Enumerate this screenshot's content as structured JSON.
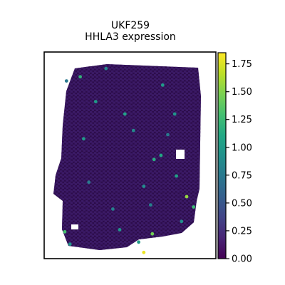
{
  "chart_data": {
    "type": "scatter",
    "title": "UKF259",
    "subtitle": "HHLA3 expression",
    "xlabel": "",
    "ylabel": "",
    "xlim": [
      0,
      100
    ],
    "ylim": [
      0,
      100
    ],
    "axes_visible": false,
    "grid": false,
    "colormap": "viridis",
    "colorbar": {
      "vmin": 0.0,
      "vmax": 1.85,
      "ticks": [
        0.0,
        0.25,
        0.5,
        0.75,
        1.0,
        1.25,
        1.5,
        1.75
      ],
      "tick_labels": [
        "0.00",
        "0.25",
        "0.50",
        "0.75",
        "1.00",
        "1.25",
        "1.50",
        "1.75"
      ]
    },
    "points": [
      {
        "x": 58,
        "y": 3,
        "value": 1.8
      },
      {
        "x": 83,
        "y": 30,
        "value": 1.55
      },
      {
        "x": 63,
        "y": 12,
        "value": 1.45
      },
      {
        "x": 12,
        "y": 13,
        "value": 1.3
      },
      {
        "x": 87,
        "y": 25,
        "value": 1.25
      },
      {
        "x": 55,
        "y": 8,
        "value": 1.0
      },
      {
        "x": 21,
        "y": 88,
        "value": 1.2
      },
      {
        "x": 64,
        "y": 48,
        "value": 1.15
      },
      {
        "x": 68,
        "y": 50,
        "value": 1.1
      },
      {
        "x": 77,
        "y": 40,
        "value": 1.05
      },
      {
        "x": 47,
        "y": 70,
        "value": 1.05
      },
      {
        "x": 23,
        "y": 58,
        "value": 1.0
      },
      {
        "x": 30,
        "y": 76,
        "value": 1.0
      },
      {
        "x": 69,
        "y": 84,
        "value": 1.0
      },
      {
        "x": 44,
        "y": 14,
        "value": 0.95
      },
      {
        "x": 15,
        "y": 7,
        "value": 0.95
      },
      {
        "x": 76,
        "y": 70,
        "value": 0.95
      },
      {
        "x": 58,
        "y": 35,
        "value": 0.9
      },
      {
        "x": 80,
        "y": 18,
        "value": 0.9
      },
      {
        "x": 36,
        "y": 92,
        "value": 0.85
      },
      {
        "x": 52,
        "y": 62,
        "value": 0.85
      },
      {
        "x": 40,
        "y": 24,
        "value": 0.8
      },
      {
        "x": 62,
        "y": 26,
        "value": 0.8
      },
      {
        "x": 13,
        "y": 86,
        "value": 0.75
      },
      {
        "x": 72,
        "y": 60,
        "value": 0.75
      },
      {
        "x": 26,
        "y": 37,
        "value": 0.75
      }
    ]
  }
}
